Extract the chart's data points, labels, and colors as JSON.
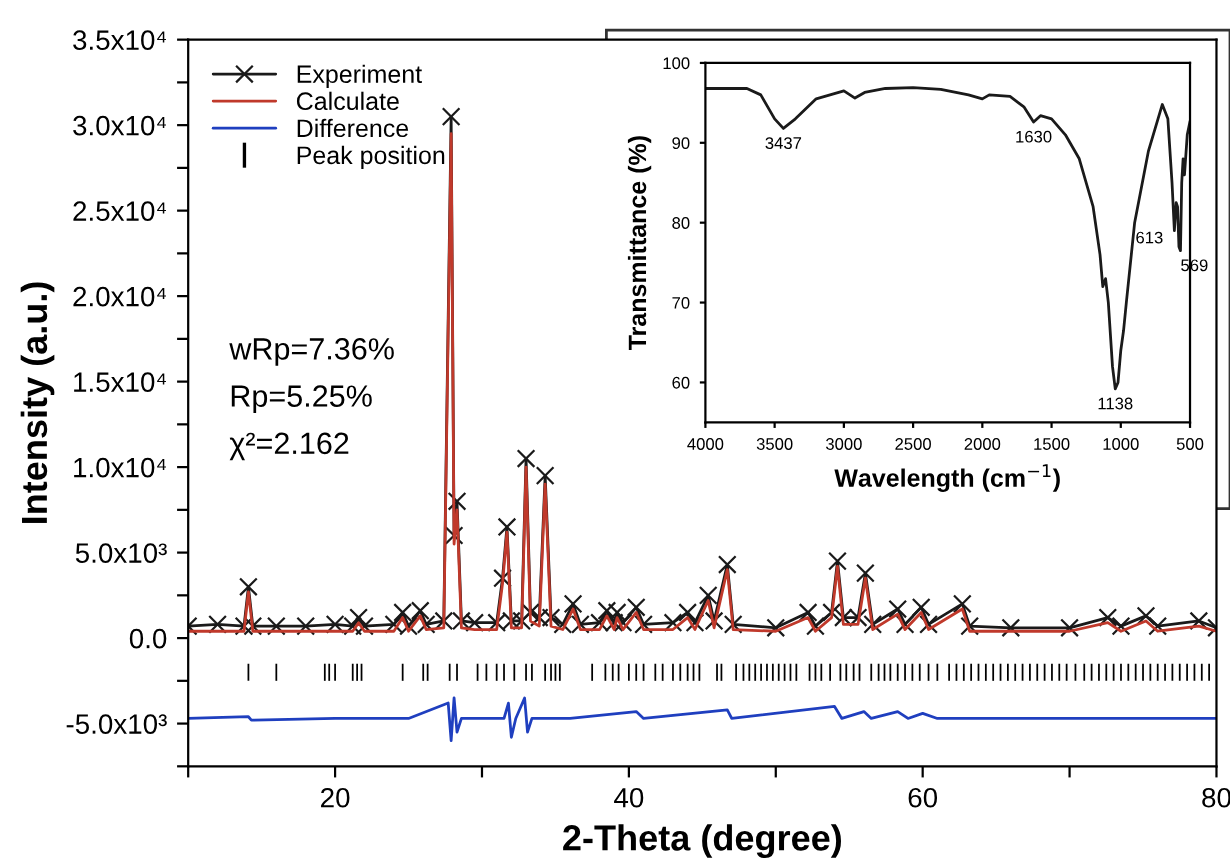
{
  "chart_data": [
    {
      "type": "line",
      "xlabel": "2-Theta (degree)",
      "ylabel": "Intensity (a.u.)",
      "xlim": [
        10,
        80
      ],
      "ylim": [
        -7500,
        35000
      ],
      "xticks": [
        {
          "value": 10,
          "label": null
        },
        20,
        {
          "value": 30,
          "label": null
        },
        40,
        {
          "value": 50,
          "label": null
        },
        60,
        {
          "value": 70,
          "label": null
        },
        80
      ],
      "yticks": [
        {
          "value": -7500,
          "label": null
        },
        {
          "value": -5000,
          "label": "-5.0x10³"
        },
        {
          "value": -2500,
          "label": null
        },
        {
          "value": 0,
          "label": "0.0"
        },
        {
          "value": 2500,
          "label": null
        },
        {
          "value": 5000,
          "label": "5.0x10³"
        },
        {
          "value": 7500,
          "label": null
        },
        {
          "value": 10000,
          "label": "1.0x10⁴"
        },
        {
          "value": 12500,
          "label": null
        },
        {
          "value": 15000,
          "label": "1.5x10⁴"
        },
        {
          "value": 17500,
          "label": null
        },
        {
          "value": 20000,
          "label": "2.0x10⁴"
        },
        {
          "value": 22500,
          "label": null
        },
        {
          "value": 25000,
          "label": "2.5x10⁴"
        },
        {
          "value": 27500,
          "label": null
        },
        {
          "value": 30000,
          "label": "3.0x10⁴"
        },
        {
          "value": 32500,
          "label": null
        },
        {
          "value": 35000,
          "label": "3.5x10⁴"
        }
      ],
      "grid": false,
      "legend": "top left",
      "annotations": [
        "wRp=7.36%",
        "Rp=5.25%",
        "χ²=2.162"
      ],
      "series": [
        {
          "name": "Experiment",
          "color": "#1a1a1a",
          "type": "line",
          "marker": "cross",
          "x": [
            10,
            12,
            13.8,
            14.1,
            14.4,
            16,
            18,
            20,
            21.2,
            21.6,
            22,
            24,
            24.6,
            25,
            25.8,
            26.2,
            27.4,
            27.9,
            28.1,
            28.3,
            28.6,
            29.5,
            31,
            31.4,
            31.7,
            32,
            32.7,
            33.0,
            33.3,
            33.9,
            34.3,
            34.7,
            35.5,
            36.2,
            36.7,
            38,
            38.5,
            39,
            39.2,
            39.6,
            40.5,
            41,
            43,
            44,
            44.5,
            45.4,
            45.8,
            46.7,
            47.1,
            50,
            52.2,
            52.7,
            53.8,
            54.2,
            54.6,
            55.6,
            56.1,
            56.6,
            58.3,
            58.8,
            59.9,
            60.4,
            62.7,
            63.2,
            66,
            70,
            72.6,
            73.5,
            75.2,
            76,
            78.8,
            80
          ],
          "values": [
            700,
            800,
            700,
            3000,
            700,
            700,
            700,
            800,
            700,
            1200,
            700,
            800,
            1500,
            700,
            1600,
            800,
            1000,
            30500,
            6000,
            8000,
            1000,
            900,
            900,
            3500,
            6500,
            1000,
            1000,
            10500,
            1500,
            1200,
            9500,
            1200,
            800,
            2000,
            800,
            900,
            1600,
            900,
            1500,
            900,
            1800,
            800,
            900,
            1500,
            900,
            2500,
            1000,
            4300,
            800,
            600,
            1500,
            700,
            1500,
            4500,
            1200,
            1200,
            3800,
            800,
            1700,
            800,
            1800,
            800,
            2000,
            700,
            600,
            600,
            1200,
            700,
            1300,
            700,
            1000,
            600
          ]
        },
        {
          "name": "Calculate",
          "color": "#c0392b",
          "type": "line",
          "marker": "none",
          "x": [
            10,
            12,
            13.8,
            14.1,
            14.4,
            16,
            18,
            20,
            21.2,
            21.6,
            22,
            24,
            24.6,
            25,
            25.8,
            26.2,
            27.4,
            27.9,
            28.1,
            28.3,
            28.6,
            29.5,
            31,
            31.4,
            31.7,
            32,
            32.7,
            33.0,
            33.3,
            33.9,
            34.3,
            34.7,
            35.5,
            36.2,
            36.7,
            38,
            38.5,
            39,
            39.2,
            39.6,
            40.5,
            41,
            43,
            44,
            44.5,
            45.4,
            45.8,
            46.7,
            47.1,
            50,
            52.2,
            52.7,
            53.8,
            54.2,
            54.6,
            55.6,
            56.1,
            56.6,
            58.3,
            58.8,
            59.9,
            60.4,
            62.7,
            63.2,
            66,
            70,
            72.6,
            73.5,
            75.2,
            76,
            78.8,
            80
          ],
          "values": [
            400,
            400,
            400,
            2700,
            400,
            400,
            400,
            400,
            400,
            900,
            400,
            400,
            1200,
            400,
            1300,
            500,
            600,
            29500,
            5500,
            7500,
            600,
            500,
            500,
            3200,
            6200,
            600,
            600,
            10000,
            1000,
            700,
            9000,
            700,
            500,
            1700,
            500,
            500,
            1300,
            500,
            1200,
            500,
            1500,
            500,
            500,
            1200,
            500,
            2200,
            600,
            4000,
            500,
            400,
            1200,
            400,
            1200,
            4200,
            800,
            800,
            3500,
            500,
            1400,
            500,
            1500,
            500,
            1700,
            400,
            400,
            400,
            900,
            400,
            1000,
            400,
            700,
            400
          ]
        },
        {
          "name": "Difference",
          "color": "#1f3fbf",
          "type": "line",
          "marker": "none",
          "x": [
            10,
            14.1,
            14.3,
            20,
            25,
            27.7,
            27.9,
            28.1,
            28.3,
            28.6,
            31.5,
            31.8,
            32.0,
            32.3,
            32.9,
            33.1,
            33.4,
            36,
            40.5,
            41,
            46.7,
            47,
            54,
            54.5,
            56,
            56.5,
            58.3,
            59,
            60,
            61,
            80
          ],
          "values": [
            -4700,
            -4600,
            -4800,
            -4700,
            -4700,
            -3800,
            -6000,
            -3500,
            -5500,
            -4700,
            -4700,
            -3800,
            -5800,
            -4700,
            -3500,
            -5500,
            -4700,
            -4700,
            -4300,
            -4700,
            -4200,
            -4700,
            -4000,
            -4700,
            -4300,
            -4700,
            -4300,
            -4700,
            -4400,
            -4700,
            -4700
          ]
        },
        {
          "name": "Peak position",
          "color": "#000000",
          "type": "bar",
          "base": [
            -2500,
            -2500,
            -2500,
            -2500,
            -2500,
            -2500,
            -2500,
            -2500,
            -2500,
            -2500,
            -2500,
            -2500,
            -2500,
            -2500,
            -2500,
            -2500,
            -2500,
            -2500,
            -2500,
            -2500,
            -2500,
            -2500,
            -2500,
            -2500,
            -2500,
            -2500,
            -2500,
            -2500,
            -2500,
            -2500,
            -2500,
            -2500,
            -2500,
            -2500,
            -2500,
            -2500,
            -2500,
            -2500,
            -2500,
            -2500,
            -2500,
            -2500,
            -2500,
            -2500,
            -2500,
            -2500,
            -2500,
            -2500,
            -2500,
            -2500,
            -2500,
            -2500,
            -2500,
            -2500,
            -2500,
            -2500,
            -2500,
            -2500,
            -2500,
            -2500,
            -2500,
            -2500,
            -2500,
            -2500,
            -2500,
            -2500,
            -2500,
            -2500,
            -2500,
            -2500,
            -2500,
            -2500,
            -2500,
            -2500,
            -2500,
            -2500,
            -2500,
            -2500,
            -2500,
            -2500,
            -2500,
            -2500,
            -2500,
            -2500,
            -2500,
            -2500,
            -2500,
            -2500,
            -2500,
            -2500,
            -2500,
            -2500,
            -2500,
            -2500,
            -2500,
            -2500,
            -2500,
            -2500,
            -2500,
            -2500,
            -2500,
            -2500,
            -2500,
            -2500,
            -2500
          ],
          "x": [
            14.1,
            16.0,
            19.3,
            19.6,
            20.0,
            21.2,
            21.5,
            21.8,
            24.6,
            26.0,
            26.3,
            27.8,
            28.3,
            29.7,
            30.3,
            31.0,
            31.5,
            32.2,
            33.0,
            33.4,
            34.3,
            34.7,
            35.0,
            35.3,
            37.5,
            38.4,
            38.9,
            39.3,
            40.0,
            40.5,
            41.0,
            41.8,
            42.3,
            43.0,
            43.5,
            44.0,
            44.4,
            44.8,
            46.0,
            46.3,
            47.3,
            47.8,
            48.2,
            48.6,
            49.0,
            49.4,
            49.8,
            50.2,
            50.6,
            51.0,
            51.4,
            52.3,
            52.7,
            53.1,
            53.7,
            54.4,
            54.8,
            55.3,
            55.7,
            56.5,
            57.0,
            57.4,
            57.8,
            58.3,
            58.8,
            59.3,
            59.8,
            60.4,
            61.0,
            61.8,
            62.3,
            62.8,
            63.3,
            63.8,
            64.3,
            64.8,
            65.3,
            65.8,
            66.3,
            66.8,
            67.3,
            67.8,
            68.3,
            68.8,
            69.3,
            69.8,
            70.4,
            71.0,
            71.5,
            72.0,
            72.5,
            73.0,
            73.5,
            74.0,
            74.5,
            75.0,
            75.5,
            76.0,
            76.5,
            77.0,
            77.5,
            78.0,
            78.5,
            79.0,
            79.5
          ],
          "values": [
            1000,
            1000,
            1000,
            1000,
            1000,
            1000,
            1000,
            1000,
            1000,
            1000,
            1000,
            1000,
            1000,
            1000,
            1000,
            1000,
            1000,
            1000,
            1000,
            1000,
            1000,
            1000,
            1000,
            1000,
            1000,
            1000,
            1000,
            1000,
            1000,
            1000,
            1000,
            1000,
            1000,
            1000,
            1000,
            1000,
            1000,
            1000,
            1000,
            1000,
            1000,
            1000,
            1000,
            1000,
            1000,
            1000,
            1000,
            1000,
            1000,
            1000,
            1000,
            1000,
            1000,
            1000,
            1000,
            1000,
            1000,
            1000,
            1000,
            1000,
            1000,
            1000,
            1000,
            1000,
            1000,
            1000,
            1000,
            1000,
            1000,
            1000,
            1000,
            1000,
            1000,
            1000,
            1000,
            1000,
            1000,
            1000,
            1000,
            1000,
            1000,
            1000,
            1000,
            1000,
            1000,
            1000,
            1000,
            1000,
            1000,
            1000,
            1000,
            1000,
            1000,
            1000,
            1000,
            1000,
            1000,
            1000,
            1000,
            1000,
            1000,
            1000,
            1000,
            1000,
            1000
          ]
        }
      ]
    },
    {
      "type": "line",
      "xlabel": "Wavelength (cm$^{−1}$)",
      "ylabel": "Transmittance (%)",
      "xlim": [
        4000,
        500
      ],
      "ylim": [
        55,
        100
      ],
      "xticks": [
        4000,
        3500,
        3000,
        2500,
        2000,
        1500,
        1000,
        500
      ],
      "yticks": [
        60,
        70,
        80,
        90,
        100
      ],
      "grid": false,
      "marker": "none",
      "annotations": [
        {
          "text": "3437",
          "x": 3437,
          "y": 91.8
        },
        {
          "text": "1630",
          "x": 1630,
          "y": 92.6
        },
        {
          "text": "1138",
          "x": 1040,
          "y": 59.2
        },
        {
          "text": "613",
          "x": 613,
          "y": 79
        },
        {
          "text": "569",
          "x": 569,
          "y": 76.5
        }
      ],
      "series": [
        {
          "color": "#1a1a1a",
          "x": [
            4000,
            3700,
            3600,
            3500,
            3437,
            3350,
            3200,
            3000,
            2920,
            2850,
            2700,
            2500,
            2300,
            2100,
            2000,
            1950,
            1800,
            1700,
            1630,
            1580,
            1500,
            1400,
            1300,
            1200,
            1150,
            1130,
            1110,
            1090,
            1060,
            1040,
            1020,
            1000,
            980,
            960,
            900,
            800,
            700,
            660,
            630,
            613,
            600,
            590,
            580,
            569,
            560,
            550,
            540,
            520,
            500
          ],
          "values": [
            96.8,
            96.8,
            96,
            93,
            91.8,
            93,
            95.5,
            96.5,
            95.6,
            96.3,
            96.8,
            96.9,
            96.7,
            96,
            95.5,
            96,
            95.8,
            94.5,
            92.6,
            93.4,
            93,
            91,
            88,
            82,
            76,
            72,
            73,
            70,
            62,
            59.2,
            60,
            64,
            66.5,
            70,
            80,
            89,
            94.8,
            93,
            85,
            79,
            82.5,
            82,
            77,
            76.5,
            85,
            88,
            86,
            91,
            92.7
          ]
        }
      ]
    }
  ]
}
